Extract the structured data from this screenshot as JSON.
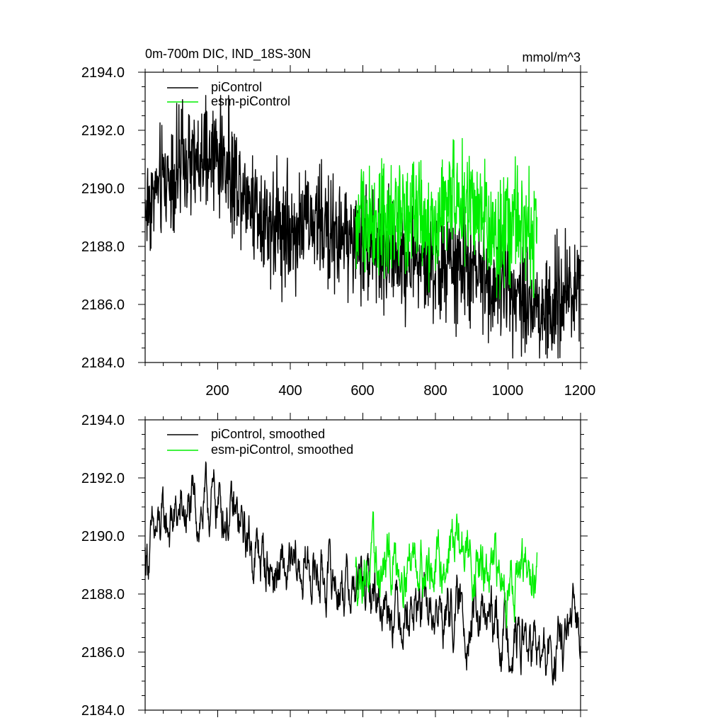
{
  "chart_data": [
    {
      "type": "line",
      "title": "0m-700m DIC, IND_18S-30N",
      "units": "mmol/m^3",
      "xlim": [
        0,
        1200
      ],
      "ylim": [
        2184,
        2194
      ],
      "x_ticks": [
        200,
        400,
        600,
        800,
        1000,
        1200
      ],
      "x_tick_labels": [
        "200",
        "400",
        "600",
        "800",
        "1000",
        "1200"
      ],
      "y_ticks": [
        2184,
        2186,
        2188,
        2190,
        2192,
        2194
      ],
      "y_tick_labels": [
        "2184.0",
        "2186.0",
        "2188.0",
        "2190.0",
        "2192.0",
        "2194.0"
      ],
      "legend_position": "top-left",
      "series": [
        {
          "name": "piControl",
          "color": "#000000",
          "x": [
            0,
            50,
            100,
            150,
            200,
            250,
            300,
            350,
            400,
            450,
            500,
            550,
            600,
            650,
            700,
            750,
            800,
            850,
            900,
            950,
            1000,
            1050,
            1100,
            1150,
            1200
          ],
          "values": [
            2189.3,
            2190.3,
            2190.7,
            2190.8,
            2191.2,
            2190.4,
            2189.5,
            2188.8,
            2188.5,
            2188.9,
            2188.6,
            2188.3,
            2188.2,
            2187.9,
            2187.6,
            2187.5,
            2187.2,
            2187.4,
            2187.1,
            2186.9,
            2186.7,
            2186.3,
            2185.6,
            2186.2,
            2187.0
          ]
        },
        {
          "name": "esm-piControl",
          "color": "#00ee00",
          "x": [
            580,
            600,
            650,
            700,
            750,
            800,
            850,
            900,
            950,
            1000,
            1050,
            1080
          ],
          "values": [
            2188.6,
            2189.0,
            2188.7,
            2189.2,
            2189.4,
            2188.6,
            2189.9,
            2189.2,
            2188.4,
            2188.7,
            2188.6,
            2188.4
          ]
        }
      ]
    },
    {
      "type": "line",
      "xlim": [
        0,
        1200
      ],
      "ylim": [
        2184,
        2194
      ],
      "x_ticks": [
        200,
        400,
        600,
        800,
        1000,
        1200
      ],
      "y_ticks": [
        2184,
        2186,
        2188,
        2190,
        2192,
        2194
      ],
      "y_tick_labels": [
        "2184.0",
        "2186.0",
        "2188.0",
        "2190.0",
        "2192.0",
        "2194.0"
      ],
      "legend_position": "top-left",
      "series": [
        {
          "name": "piControl, smoothed",
          "color": "#000000",
          "x": [
            0,
            50,
            100,
            150,
            200,
            250,
            300,
            350,
            400,
            450,
            500,
            550,
            600,
            650,
            700,
            750,
            800,
            850,
            900,
            950,
            1000,
            1050,
            1100,
            1150,
            1200
          ],
          "values": [
            2189.3,
            2190.3,
            2190.7,
            2190.8,
            2191.2,
            2190.4,
            2189.5,
            2188.8,
            2188.5,
            2188.9,
            2188.6,
            2188.3,
            2188.2,
            2187.9,
            2187.6,
            2187.5,
            2187.2,
            2187.4,
            2187.1,
            2186.9,
            2186.7,
            2186.3,
            2185.6,
            2186.2,
            2187.0
          ]
        },
        {
          "name": "esm-piControl, smoothed",
          "color": "#00ee00",
          "x": [
            580,
            600,
            650,
            700,
            750,
            800,
            850,
            900,
            950,
            1000,
            1050,
            1080
          ],
          "values": [
            2188.6,
            2189.0,
            2188.7,
            2189.2,
            2189.4,
            2188.6,
            2189.9,
            2189.2,
            2188.4,
            2188.7,
            2188.6,
            2188.4
          ]
        }
      ]
    }
  ]
}
